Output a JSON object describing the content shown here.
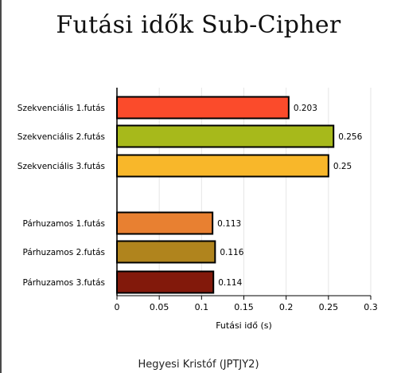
{
  "title": "Futási idők Sub-Cipher",
  "footer": "Hegyesi Kristóf (JPTJY2)",
  "chart_data": {
    "type": "bar",
    "orientation": "horizontal",
    "title": "Futási idők Sub-Cipher",
    "xlabel": "Futási idő (s)",
    "ylabel": "",
    "xlim": [
      0,
      0.3
    ],
    "grid": true,
    "categories": [
      "Szekvenciális 1.futás",
      "Szekvenciális 2.futás",
      "Szekvenciális 3.futás",
      "Párhuzamos 1.futás",
      "Párhuzamos 2.futás",
      "Párhuzamos 3.futás"
    ],
    "values": [
      0.203,
      0.256,
      0.25,
      0.113,
      0.116,
      0.114
    ],
    "value_labels": [
      "0.203",
      "0.256",
      "0.25",
      "0.113",
      "0.116",
      "0.114"
    ],
    "colors": [
      "#fb4b2b",
      "#a7b91b",
      "#f8b72a",
      "#e88031",
      "#b0841d",
      "#82190b"
    ],
    "ticks": [
      "0",
      "0.05",
      "0.1",
      "0.15",
      "0.2",
      "0.25",
      "0.3"
    ]
  }
}
